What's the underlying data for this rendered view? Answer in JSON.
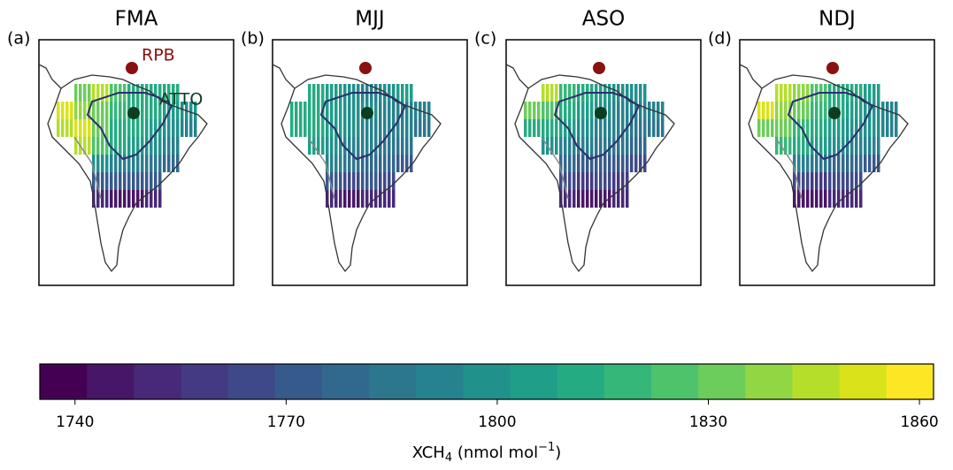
{
  "panels": [
    {
      "label": "(a)",
      "title": "FMA",
      "cells": [
        [
          null,
          1835,
          1845,
          1825,
          1815,
          1810,
          1815,
          null
        ],
        [
          1850,
          1840,
          1830,
          1820,
          1815,
          1810,
          1805,
          1800
        ],
        [
          1845,
          1850,
          1835,
          1815,
          1810,
          1805,
          1800,
          1795
        ],
        [
          null,
          1845,
          1825,
          1810,
          1805,
          1800,
          1795,
          null
        ],
        [
          null,
          null,
          1800,
          1795,
          1790,
          1785,
          1780,
          null
        ],
        [
          null,
          null,
          1775,
          1770,
          1775,
          1770,
          null,
          null
        ],
        [
          null,
          null,
          1750,
          1745,
          1748,
          1752,
          null,
          null
        ]
      ]
    },
    {
      "label": "(b)",
      "title": "MJJ",
      "cells": [
        [
          null,
          1810,
          1805,
          1800,
          1795,
          1800,
          1805,
          null
        ],
        [
          1815,
          1810,
          1805,
          1800,
          1800,
          1795,
          1795,
          1790
        ],
        [
          1810,
          1812,
          1805,
          1800,
          1795,
          1792,
          1790,
          1788
        ],
        [
          null,
          1805,
          1800,
          1795,
          1790,
          1788,
          1785,
          null
        ],
        [
          null,
          null,
          1790,
          1785,
          1780,
          1778,
          1775,
          null
        ],
        [
          null,
          null,
          1770,
          1768,
          1770,
          1765,
          null,
          null
        ],
        [
          null,
          null,
          1752,
          1748,
          1750,
          1755,
          null,
          null
        ]
      ]
    },
    {
      "label": "(c)",
      "title": "ASO",
      "cells": [
        [
          null,
          1845,
          1820,
          1810,
          1805,
          1800,
          1800,
          null
        ],
        [
          1830,
          1825,
          1815,
          1805,
          1800,
          1795,
          1795,
          1790
        ],
        [
          1815,
          1810,
          1805,
          1800,
          1795,
          1790,
          1788,
          1785
        ],
        [
          null,
          1800,
          1795,
          1790,
          1785,
          1782,
          1780,
          null
        ],
        [
          null,
          null,
          1780,
          1775,
          1772,
          1770,
          1768,
          null
        ],
        [
          null,
          null,
          1765,
          1760,
          1762,
          1758,
          null,
          null
        ],
        [
          null,
          null,
          1750,
          1745,
          1748,
          1752,
          null,
          null
        ]
      ]
    },
    {
      "label": "(d)",
      "title": "NDJ",
      "cells": [
        [
          null,
          1845,
          1840,
          1825,
          1815,
          1810,
          1805,
          null
        ],
        [
          1850,
          1840,
          1830,
          1820,
          1810,
          1805,
          1800,
          1795
        ],
        [
          1835,
          1830,
          1820,
          1810,
          1805,
          1800,
          1798,
          1792
        ],
        [
          null,
          1820,
          1810,
          1805,
          1800,
          1795,
          1790,
          null
        ],
        [
          null,
          null,
          1790,
          1785,
          1780,
          1778,
          1775,
          null
        ],
        [
          null,
          null,
          1765,
          1760,
          1765,
          1762,
          null,
          null
        ],
        [
          null,
          null,
          1748,
          1745,
          1750,
          1752,
          null,
          null
        ]
      ]
    }
  ],
  "sites": [
    {
      "name": "RPB",
      "color": "#8b1010"
    },
    {
      "name": "ATTO",
      "color": "#0b3d20"
    }
  ],
  "colorbar": {
    "label": {
      "base": "XCH",
      "sub": "4",
      "unit": " (nmol mol",
      "sup": "−1",
      "end": ")"
    },
    "lim": [
      1735,
      1862
    ],
    "ticks": [
      1740,
      1770,
      1800,
      1830,
      1860
    ],
    "colors": [
      "#440154",
      "#481668",
      "#482878",
      "#443983",
      "#3e4989",
      "#375a8c",
      "#31688e",
      "#2c768e",
      "#26828e",
      "#21918c",
      "#1f9e89",
      "#25ab82",
      "#35b779",
      "#4ec36b",
      "#6ccd5a",
      "#90d743",
      "#b5de2b",
      "#dae319",
      "#fde725"
    ]
  }
}
